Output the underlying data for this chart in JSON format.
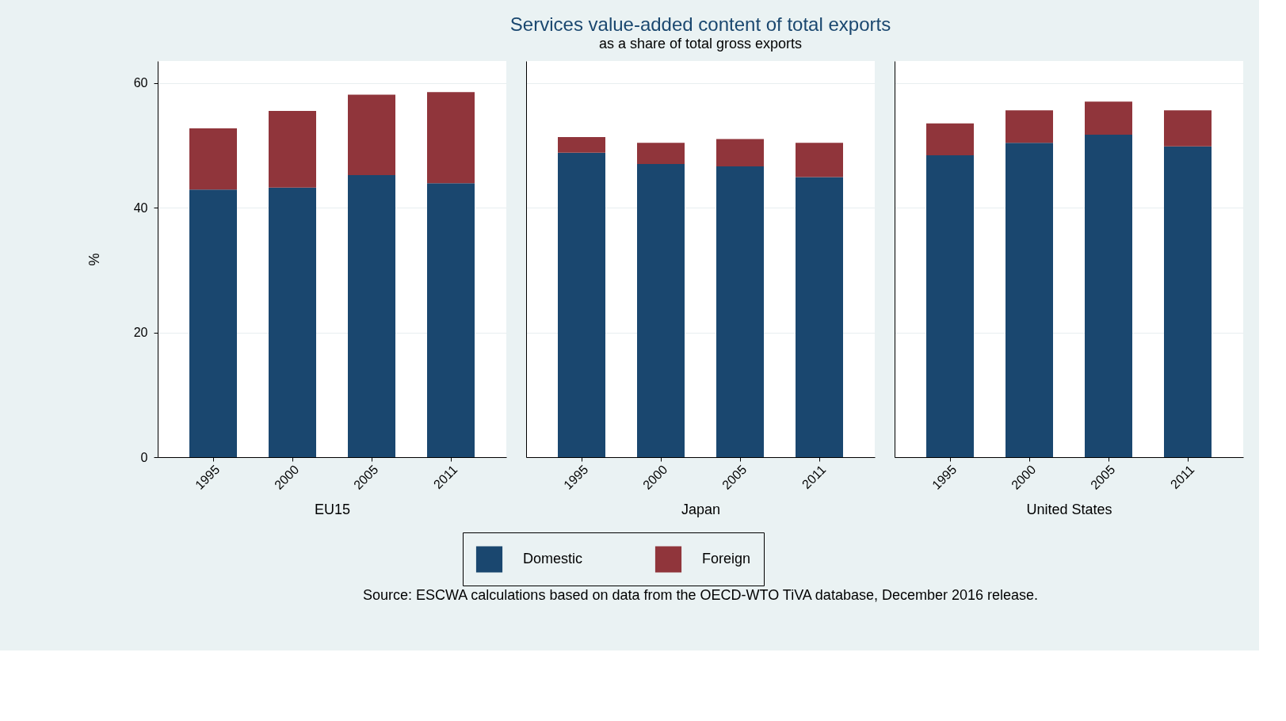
{
  "chart_data": [
    {
      "type": "bar",
      "ylabel": "%",
      "xlabel": "EU15",
      "stacked": true,
      "grid": "y",
      "legend": "bottom",
      "categories": [
        "1995",
        "2000",
        "2005",
        "2011"
      ],
      "ylim": [
        0,
        63.5
      ],
      "yticks": [
        0,
        20,
        40,
        60
      ],
      "series": [
        {
          "name": "Domestic",
          "color": "#1a476f",
          "values": [
            42.9,
            43.2,
            45.2,
            43.9
          ]
        },
        {
          "name": "Foreign",
          "color": "#90353b",
          "values": [
            9.8,
            12.3,
            12.9,
            14.6
          ]
        }
      ]
    },
    {
      "type": "bar",
      "title": "Services value-added content of total exports",
      "subtitle": "as a share of total gross exports",
      "xlabel": "Japan",
      "stacked": true,
      "grid": "y",
      "tick_labels": "x",
      "categories": [
        "1995",
        "2000",
        "2005",
        "2011"
      ],
      "ylim": [
        0,
        63.5
      ],
      "series": [
        {
          "name": "Domestic",
          "color": "#1a476f",
          "values": [
            48.8,
            47.0,
            46.6,
            44.9
          ]
        },
        {
          "name": "Foreign",
          "color": "#90353b",
          "values": [
            2.5,
            3.4,
            4.4,
            5.5
          ]
        }
      ],
      "annotations": [
        "Source: ESCWA calculations based on data from the OECD-WTO TiVA database, December 2016 release."
      ]
    },
    {
      "type": "bar",
      "xlabel": "United States",
      "stacked": true,
      "grid": "y",
      "tick_labels": "x",
      "categories": [
        "1995",
        "2000",
        "2005",
        "2011"
      ],
      "ylim": [
        0,
        63.5
      ],
      "series": [
        {
          "name": "Domestic",
          "color": "#1a476f",
          "values": [
            48.4,
            50.4,
            51.7,
            49.8
          ]
        },
        {
          "name": "Foreign",
          "color": "#90353b",
          "values": [
            5.1,
            5.2,
            5.3,
            5.8
          ]
        }
      ]
    }
  ]
}
